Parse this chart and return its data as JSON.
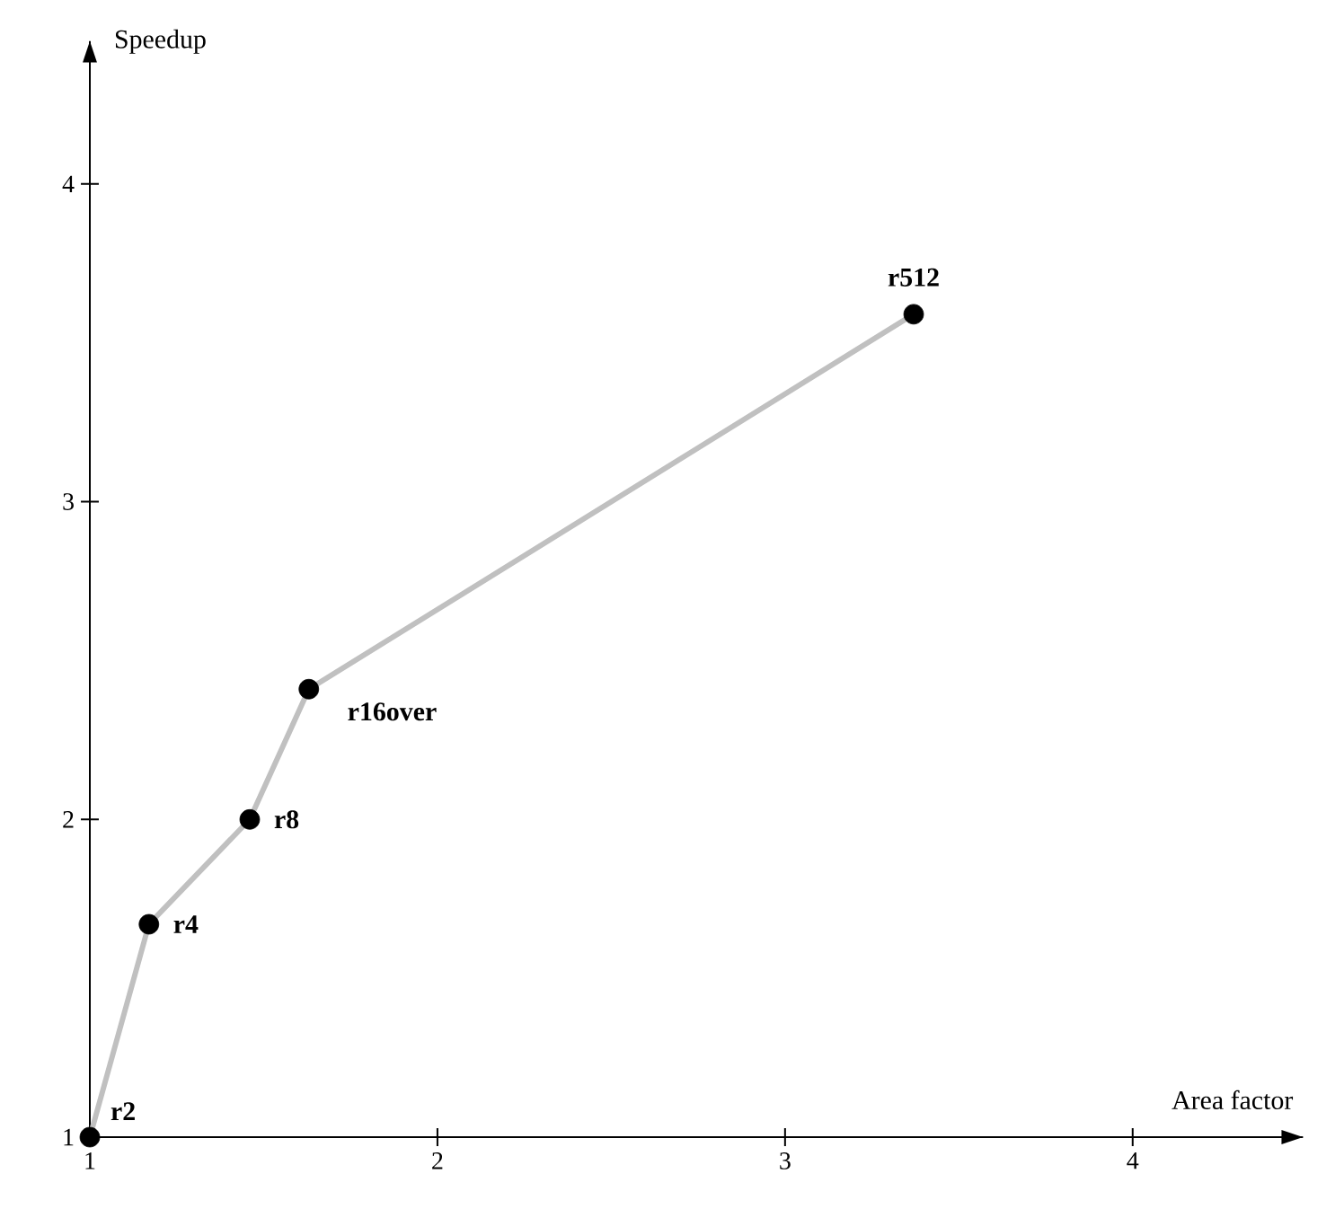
{
  "chart_data": {
    "type": "line",
    "xlabel": "Area factor",
    "ylabel": "Speedup",
    "xlim": [
      1,
      4.49
    ],
    "ylim": [
      1,
      4.45
    ],
    "xticks": [
      1,
      2,
      3,
      4
    ],
    "yticks": [
      1,
      2,
      3,
      4
    ],
    "grid": false,
    "series": [
      {
        "color": "#c0c0c0",
        "x": [
          1,
          1.17,
          1.46,
          1.63,
          3.37
        ],
        "values": [
          1,
          1.67,
          2,
          2.41,
          3.59
        ]
      },
      {
        "type": "scatter",
        "color": "#000000",
        "x": [
          1,
          1.17,
          1.46,
          1.63,
          3.37
        ],
        "values": [
          1,
          1.67,
          2,
          2.41,
          3.59
        ]
      }
    ],
    "annotations": [
      {
        "text": "r2",
        "x": 1,
        "y": 1
      },
      {
        "text": "r4",
        "x": 1.17,
        "y": 1.67
      },
      {
        "text": "r8",
        "x": 1.46,
        "y": 2
      },
      {
        "text": "r16over",
        "x": 1.63,
        "y": 2.41
      },
      {
        "text": "r512",
        "x": 3.37,
        "y": 3.59
      }
    ]
  }
}
